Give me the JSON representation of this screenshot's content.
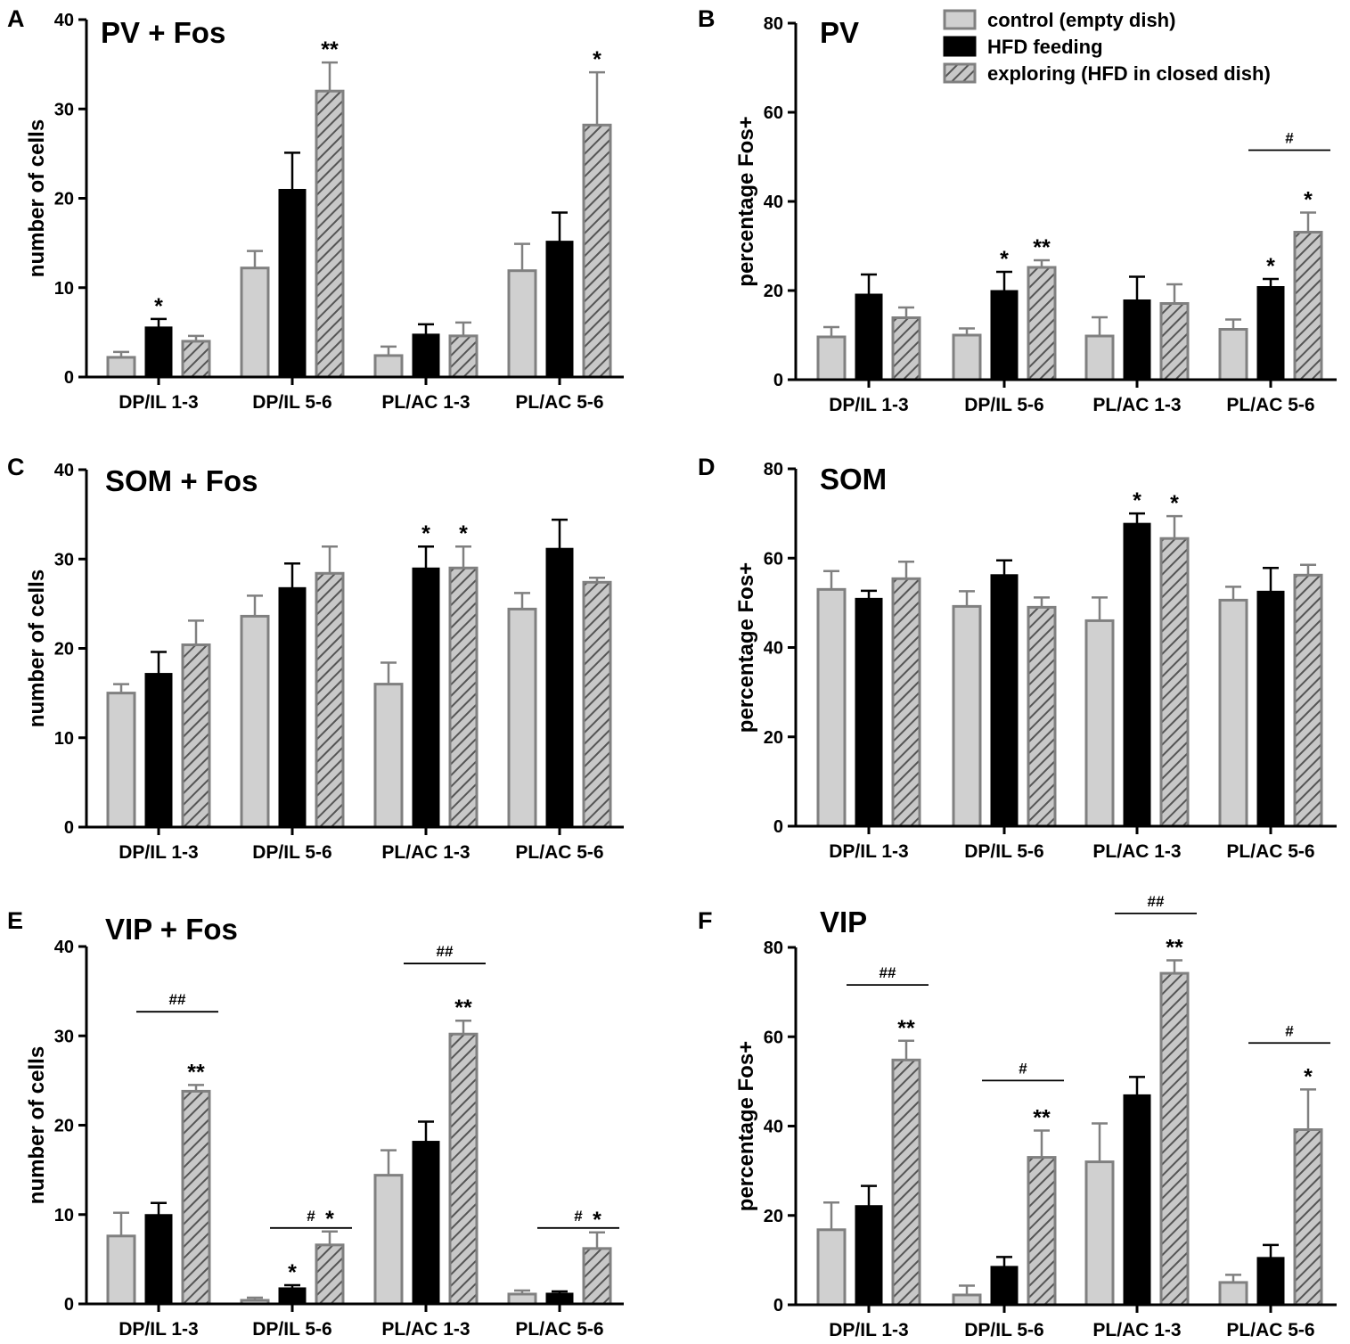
{
  "colors": {
    "control_fill": "#d0d0d0",
    "control_stroke": "#808080",
    "hfd_fill": "#000000",
    "exploring_fill": "#c8c8c8",
    "exploring_hatch": "#555555",
    "exploring_stroke": "#808080",
    "axis": "#000000"
  },
  "legend": {
    "items": [
      {
        "label": "control (empty dish)",
        "style": "control"
      },
      {
        "label": "HFD feeding",
        "style": "hfd"
      },
      {
        "label": "exploring (HFD in closed dish)",
        "style": "exploring"
      }
    ]
  },
  "chart_data": [
    {
      "panel": "A",
      "title": "PV + Fos",
      "type": "bar",
      "ylabel": "number of cells",
      "ylim": [
        0,
        40
      ],
      "yticks": [
        0,
        10,
        20,
        30,
        40
      ],
      "categories": [
        "DP/IL 1-3",
        "DP/IL 5-6",
        "PL/AC 1-3",
        "PL/AC 5-6"
      ],
      "series": [
        {
          "name": "control (empty dish)",
          "values": [
            2.2,
            12.2,
            2.4,
            11.9
          ],
          "errors": [
            0.6,
            1.9,
            1.0,
            3.0
          ],
          "labels": [
            "",
            "",
            "",
            ""
          ]
        },
        {
          "name": "HFD feeding",
          "values": [
            5.6,
            21.0,
            4.8,
            15.2
          ],
          "errors": [
            0.9,
            4.1,
            1.1,
            3.2
          ],
          "labels": [
            "*",
            "",
            "",
            ""
          ]
        },
        {
          "name": "exploring (HFD in closed dish)",
          "values": [
            4.0,
            32.0,
            4.6,
            28.2
          ],
          "errors": [
            0.6,
            3.2,
            1.5,
            5.9
          ],
          "labels": [
            "",
            "**",
            "",
            "*"
          ]
        }
      ],
      "brackets": []
    },
    {
      "panel": "B",
      "title": "PV",
      "type": "bar",
      "ylabel": "percentage Fos+",
      "ylim": [
        0,
        80
      ],
      "yticks": [
        0,
        20,
        40,
        60,
        80
      ],
      "categories": [
        "DP/IL 1-3",
        "DP/IL 5-6",
        "PL/AC 1-3",
        "PL/AC 5-6"
      ],
      "series": [
        {
          "name": "control (empty dish)",
          "values": [
            9.6,
            10.0,
            9.8,
            11.3
          ],
          "errors": [
            2.2,
            1.5,
            4.2,
            2.2
          ],
          "labels": [
            "",
            "",
            "",
            ""
          ]
        },
        {
          "name": "HFD feeding",
          "values": [
            19.2,
            20.0,
            17.9,
            20.9
          ],
          "errors": [
            4.4,
            4.2,
            5.2,
            1.7
          ],
          "labels": [
            "",
            "*",
            "",
            "*"
          ]
        },
        {
          "name": "exploring (HFD in closed dish)",
          "values": [
            13.9,
            25.2,
            17.1,
            33.1
          ],
          "errors": [
            2.3,
            1.6,
            4.3,
            4.4
          ],
          "labels": [
            "",
            "**",
            "",
            "*"
          ]
        }
      ],
      "brackets": [
        {
          "category": 3,
          "from": 1,
          "to": 2,
          "y": 51.5,
          "label": "#"
        }
      ]
    },
    {
      "panel": "C",
      "title": "SOM + Fos",
      "type": "bar",
      "ylabel": "number of cells",
      "ylim": [
        0,
        40
      ],
      "yticks": [
        0,
        10,
        20,
        30,
        40
      ],
      "categories": [
        "DP/IL 1-3",
        "DP/IL 5-6",
        "PL/AC 1-3",
        "PL/AC 5-6"
      ],
      "series": [
        {
          "name": "control (empty dish)",
          "values": [
            15.0,
            23.6,
            16.0,
            24.4
          ],
          "errors": [
            1.0,
            2.3,
            2.4,
            1.8
          ],
          "labels": [
            "",
            "",
            "",
            ""
          ]
        },
        {
          "name": "HFD feeding",
          "values": [
            17.2,
            26.8,
            29.0,
            31.2
          ],
          "errors": [
            2.4,
            2.7,
            2.4,
            3.2
          ],
          "labels": [
            "",
            "",
            "*",
            ""
          ]
        },
        {
          "name": "exploring (HFD in closed dish)",
          "values": [
            20.4,
            28.4,
            29.0,
            27.4
          ],
          "errors": [
            2.7,
            3.0,
            2.4,
            0.5
          ],
          "labels": [
            "",
            "",
            "*",
            ""
          ]
        }
      ],
      "brackets": []
    },
    {
      "panel": "D",
      "title": "SOM",
      "type": "bar",
      "ylabel": "percentage Fos+",
      "ylim": [
        0,
        80
      ],
      "yticks": [
        0,
        20,
        40,
        60,
        80
      ],
      "categories": [
        "DP/IL 1-3",
        "DP/IL 5-6",
        "PL/AC 1-3",
        "PL/AC 5-6"
      ],
      "series": [
        {
          "name": "control (empty dish)",
          "values": [
            53.0,
            49.2,
            46.0,
            50.6
          ],
          "errors": [
            4.1,
            3.4,
            5.2,
            3.0
          ],
          "labels": [
            "",
            "",
            "",
            ""
          ]
        },
        {
          "name": "HFD feeding",
          "values": [
            51.0,
            56.3,
            67.8,
            52.6
          ],
          "errors": [
            1.7,
            3.2,
            2.2,
            5.2
          ],
          "labels": [
            "",
            "",
            "*",
            ""
          ]
        },
        {
          "name": "exploring (HFD in closed dish)",
          "values": [
            55.4,
            49.0,
            64.4,
            56.2
          ],
          "errors": [
            3.8,
            2.2,
            5.0,
            2.3
          ],
          "labels": [
            "",
            "",
            "*",
            ""
          ]
        }
      ],
      "brackets": []
    },
    {
      "panel": "E",
      "title": "VIP + Fos",
      "type": "bar",
      "ylabel": "number of cells",
      "ylim": [
        0,
        40
      ],
      "yticks": [
        0,
        10,
        20,
        30,
        40
      ],
      "categories": [
        "DP/IL 1-3",
        "DP/IL 5-6",
        "PL/AC 1-3",
        "PL/AC 5-6"
      ],
      "series": [
        {
          "name": "control (empty dish)",
          "values": [
            7.6,
            0.4,
            14.4,
            1.1
          ],
          "errors": [
            2.6,
            0.3,
            2.8,
            0.4
          ],
          "labels": [
            "",
            "",
            "",
            ""
          ]
        },
        {
          "name": "HFD feeding",
          "values": [
            10.0,
            1.8,
            18.2,
            1.2
          ],
          "errors": [
            1.3,
            0.3,
            2.2,
            0.2
          ],
          "labels": [
            "",
            "*",
            "",
            ""
          ]
        },
        {
          "name": "exploring (HFD in closed dish)",
          "values": [
            23.8,
            6.6,
            30.2,
            6.2
          ],
          "errors": [
            0.7,
            1.5,
            1.5,
            1.8
          ],
          "labels": [
            "**",
            "*",
            "**",
            "*"
          ]
        }
      ],
      "brackets": [
        {
          "category": 0,
          "from": 1,
          "to": 2,
          "y": 32.7,
          "label": "##"
        },
        {
          "category": 1,
          "from": 1,
          "to": 2,
          "y": 8.5,
          "label": "#"
        },
        {
          "category": 2,
          "from": 1,
          "to": 2,
          "y": 38.1,
          "label": "##"
        },
        {
          "category": 3,
          "from": 1,
          "to": 2,
          "y": 8.5,
          "label": "#"
        }
      ]
    },
    {
      "panel": "F",
      "title": "VIP",
      "type": "bar",
      "ylabel": "percentage Fos+",
      "ylim": [
        0,
        80
      ],
      "yticks": [
        0,
        20,
        40,
        60,
        80
      ],
      "categories": [
        "DP/IL 1-3",
        "DP/IL 5-6",
        "PL/AC 1-3",
        "PL/AC 5-6"
      ],
      "series": [
        {
          "name": "control (empty dish)",
          "values": [
            16.8,
            2.2,
            32.0,
            5.0
          ],
          "errors": [
            6.1,
            2.1,
            8.6,
            1.7
          ],
          "labels": [
            "",
            "",
            "",
            ""
          ]
        },
        {
          "name": "HFD feeding",
          "values": [
            22.2,
            8.6,
            47.0,
            10.6
          ],
          "errors": [
            4.4,
            2.1,
            4.0,
            2.8
          ],
          "labels": [
            "",
            "",
            "",
            ""
          ]
        },
        {
          "name": "exploring (HFD in closed dish)",
          "values": [
            54.8,
            33.0,
            74.2,
            39.2
          ],
          "errors": [
            4.3,
            6.0,
            2.9,
            9.0
          ],
          "labels": [
            "**",
            "**",
            "**",
            "*"
          ]
        }
      ],
      "brackets": [
        {
          "category": 0,
          "from": 1,
          "to": 2,
          "y": 71.6,
          "label": "##"
        },
        {
          "category": 1,
          "from": 1,
          "to": 2,
          "y": 50.2,
          "label": "#"
        },
        {
          "category": 2,
          "from": 1,
          "to": 2,
          "y": 87.6,
          "label": "##"
        },
        {
          "category": 3,
          "from": 1,
          "to": 2,
          "y": 58.6,
          "label": "#"
        }
      ]
    }
  ]
}
